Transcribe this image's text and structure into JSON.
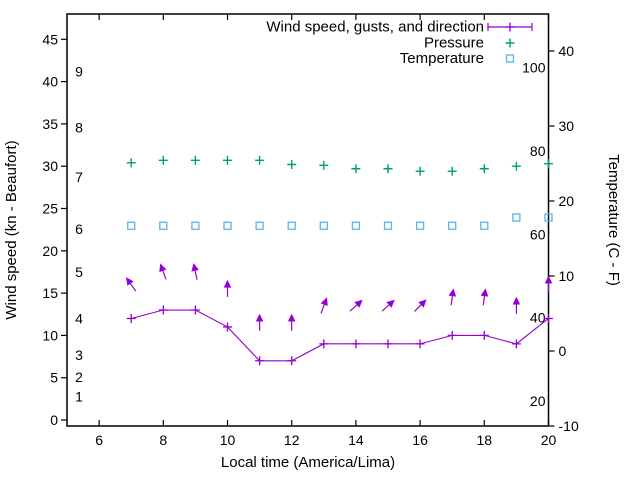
{
  "chart_data": {
    "type": "line",
    "title": "",
    "grid": false,
    "legend_position": "top-right-inside",
    "x_hours": [
      7,
      8,
      9,
      10,
      11,
      12,
      13,
      14,
      15,
      16,
      17,
      18,
      19,
      20
    ],
    "series": [
      {
        "name": "Wind speed, gusts, and direction",
        "type": "line+points+arrows",
        "color": "#9400d3",
        "marker": "plus",
        "wind_speed_kn": [
          12,
          13,
          13,
          11,
          7,
          7,
          9,
          9,
          9,
          9,
          10,
          10,
          9,
          12
        ],
        "gust_kn": [
          16,
          17.5,
          17.5,
          15.5,
          11.5,
          11.5,
          13.5,
          13.5,
          13.5,
          13.5,
          14.5,
          14.5,
          13.5,
          16
        ],
        "arrow_angle_deg_cw_from_up": [
          -35,
          -20,
          -12,
          0,
          0,
          0,
          20,
          48,
          48,
          45,
          8,
          8,
          0,
          0
        ]
      },
      {
        "name": "Pressure",
        "type": "scatter",
        "marker": "plus",
        "color": "#009e73",
        "values_left_axis": [
          30.4,
          30.7,
          30.7,
          30.7,
          30.7,
          30.2,
          30.1,
          29.7,
          29.7,
          29.4,
          29.4,
          29.7,
          30.0,
          30.3
        ]
      },
      {
        "name": "Temperature",
        "type": "scatter",
        "marker": "open-square",
        "color": "#56b4e9",
        "values_c": [
          16.7,
          16.7,
          16.7,
          16.7,
          16.7,
          16.7,
          16.7,
          16.7,
          16.7,
          16.7,
          16.7,
          16.7,
          17.8,
          17.8
        ]
      }
    ],
    "axes": {
      "x": {
        "label": "Local time (America/Lima)",
        "range": [
          5,
          20
        ],
        "ticks": [
          6,
          8,
          10,
          12,
          14,
          16,
          18,
          20
        ]
      },
      "y_left": {
        "label": "Wind speed (kn - Beaufort)",
        "units": "kn",
        "ticks_kn": [
          0,
          5,
          10,
          15,
          20,
          25,
          30,
          35,
          40,
          45
        ],
        "beaufort_labels": [
          {
            "label": "1",
            "kn": 2.8
          },
          {
            "label": "2",
            "kn": 5.1
          },
          {
            "label": "3",
            "kn": 7.7
          },
          {
            "label": "4",
            "kn": 12.0
          },
          {
            "label": "5",
            "kn": 17.5
          },
          {
            "label": "6",
            "kn": 22.6
          },
          {
            "label": "7",
            "kn": 28.7
          },
          {
            "label": "8",
            "kn": 34.6
          },
          {
            "label": "9",
            "kn": 41.2
          }
        ]
      },
      "y_right": {
        "label": "Temperature (C - F)",
        "ticks_c": [
          -10,
          0,
          10,
          20,
          30,
          40
        ],
        "fahrenheit_inner_labels": [
          20,
          40,
          60,
          80,
          100
        ]
      }
    }
  }
}
